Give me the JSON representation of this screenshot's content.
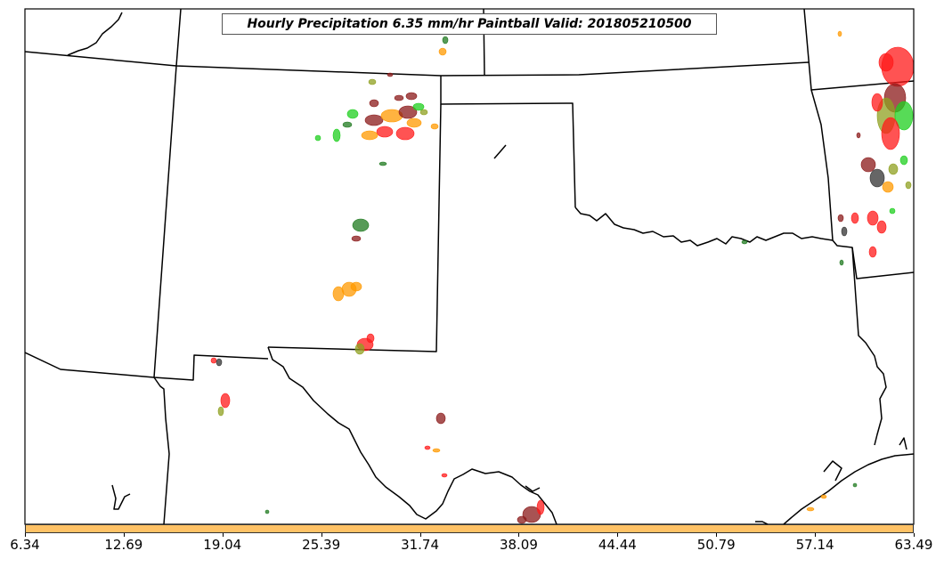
{
  "title": "Hourly Precipitation 6.35 mm/hr Paintball Valid: 201805210500",
  "colorbar": {
    "fill_color": "#ffc266",
    "ticks": [
      "6.34",
      "12.69",
      "19.04",
      "25.39",
      "31.74",
      "38.09",
      "44.44",
      "50.79",
      "57.14",
      "63.49"
    ]
  },
  "map": {
    "boundary_color": "#000000",
    "paintball_colors": [
      "#ff1a1a",
      "#ff9900",
      "#1fcf1f",
      "#8b1a1a",
      "#1f7a1f",
      "#8fa020",
      "#333333"
    ]
  }
}
